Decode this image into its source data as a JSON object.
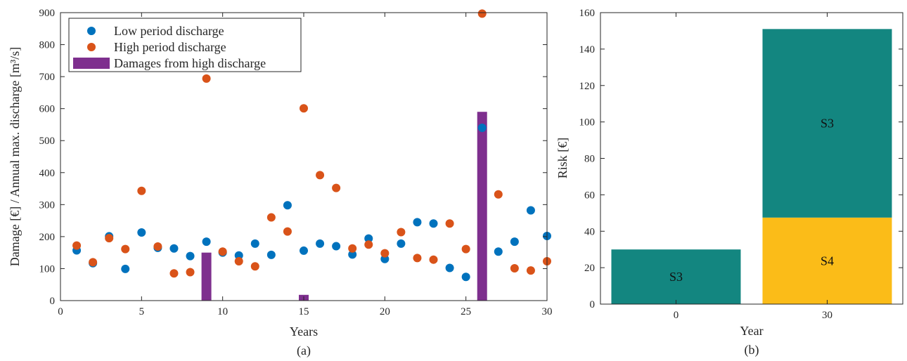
{
  "chart_data": [
    {
      "type": "scatter+bar",
      "panel_label": "(a)",
      "xlabel": "Years",
      "ylabel": "Damage [€] / Annual max. discharge [m³/s]",
      "xlim": [
        0,
        30
      ],
      "ylim": [
        0,
        900
      ],
      "xticks": [
        0,
        5,
        10,
        15,
        20,
        25,
        30
      ],
      "yticks": [
        0,
        100,
        200,
        300,
        400,
        500,
        600,
        700,
        800,
        900
      ],
      "legend_placement": "top-left",
      "series": [
        {
          "name": "Low period discharge",
          "kind": "scatter",
          "color": "#0072BD",
          "x": [
            1,
            2,
            3,
            4,
            5,
            6,
            7,
            8,
            9,
            10,
            11,
            12,
            13,
            14,
            15,
            16,
            17,
            18,
            19,
            20,
            21,
            22,
            23,
            24,
            25,
            26,
            27,
            28,
            29,
            30
          ],
          "y": [
            157,
            117,
            201,
            99,
            213,
            165,
            163,
            139,
            184,
            150,
            141,
            178,
            143,
            298,
            156,
            178,
            170,
            144,
            194,
            130,
            178,
            245,
            241,
            102,
            74,
            540,
            153,
            184,
            282,
            202
          ]
        },
        {
          "name": "High period discharge",
          "kind": "scatter",
          "color": "#D95319",
          "x": [
            1,
            2,
            3,
            4,
            5,
            6,
            7,
            8,
            9,
            10,
            11,
            12,
            13,
            14,
            15,
            16,
            17,
            18,
            19,
            20,
            21,
            22,
            23,
            24,
            25,
            26,
            27,
            28,
            29,
            30
          ],
          "y": [
            172,
            120,
            195,
            161,
            343,
            169,
            85,
            89,
            694,
            153,
            123,
            107,
            260,
            216,
            601,
            392,
            352,
            163,
            175,
            148,
            214,
            133,
            128,
            241,
            161,
            897,
            332,
            101,
            94,
            123
          ]
        },
        {
          "name": "Damages from high discharge",
          "kind": "bar",
          "color": "#7E2F8E",
          "x": [
            9,
            15,
            26
          ],
          "y": [
            150,
            18,
            590
          ]
        }
      ]
    },
    {
      "type": "stacked-bar",
      "panel_label": "(b)",
      "xlabel": "Year",
      "ylabel": "Risk [€]",
      "categories": [
        "0",
        "30"
      ],
      "ylim": [
        0,
        160
      ],
      "yticks": [
        0,
        20,
        40,
        60,
        80,
        100,
        120,
        140,
        160
      ],
      "stacks": [
        {
          "category": "0",
          "segments": [
            {
              "label": "S3",
              "value": 30,
              "color": "#138680"
            }
          ]
        },
        {
          "category": "30",
          "segments": [
            {
              "label": "S4",
              "value": 47.5,
              "color": "#FBBC18"
            },
            {
              "label": "S3",
              "value": 103.5,
              "color": "#138680"
            }
          ]
        }
      ]
    }
  ]
}
